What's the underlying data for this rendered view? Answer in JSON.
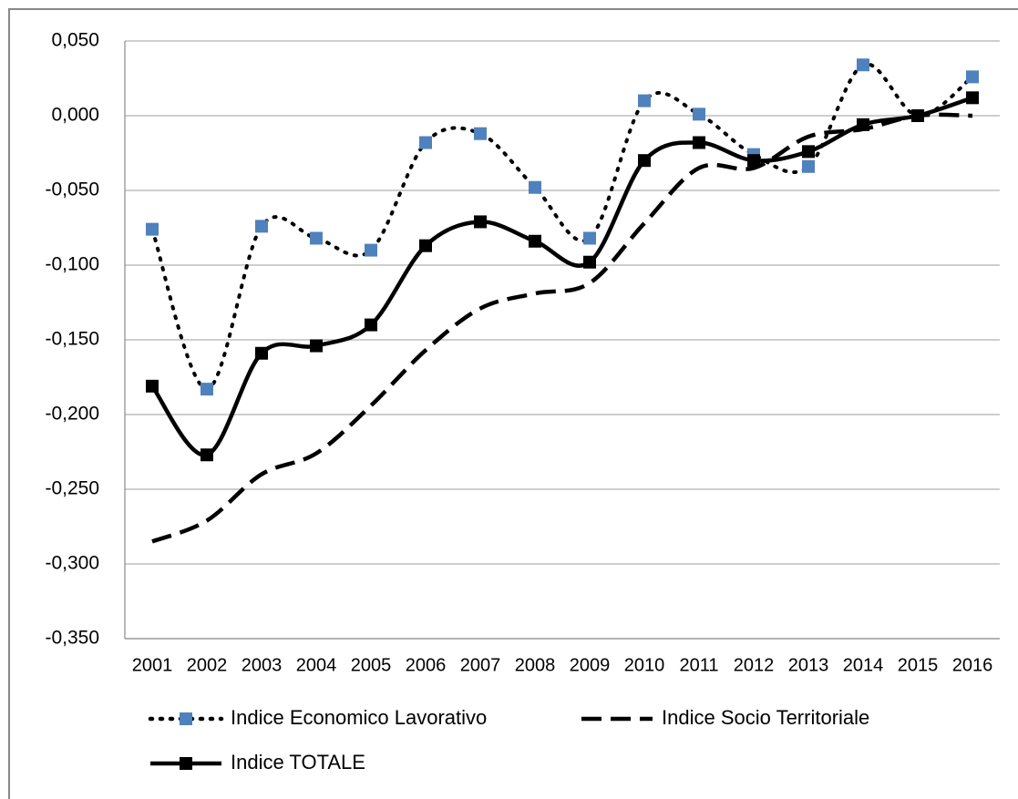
{
  "chart_data": {
    "type": "line",
    "categories": [
      "2001",
      "2002",
      "2003",
      "2004",
      "2005",
      "2006",
      "2007",
      "2008",
      "2009",
      "2010",
      "2011",
      "2012",
      "2013",
      "2014",
      "2015",
      "2016"
    ],
    "series": [
      {
        "name": "Indice Economico Lavorativo",
        "color": "#000000",
        "dash": "dotted",
        "marker": "square",
        "marker_color": "#4f81bd",
        "values": [
          -0.076,
          -0.183,
          -0.074,
          -0.082,
          -0.09,
          -0.018,
          -0.012,
          -0.048,
          -0.082,
          0.01,
          0.001,
          -0.026,
          -0.034,
          0.034,
          0.0,
          0.026
        ]
      },
      {
        "name": "Indice Socio Territoriale",
        "color": "#000000",
        "dash": "dashed",
        "marker": "none",
        "values": [
          -0.285,
          -0.271,
          -0.24,
          -0.226,
          -0.194,
          -0.157,
          -0.129,
          -0.119,
          -0.112,
          -0.072,
          -0.035,
          -0.035,
          -0.014,
          -0.009,
          0.0,
          0.0
        ]
      },
      {
        "name": "Indice TOTALE",
        "color": "#000000",
        "dash": "solid",
        "marker": "square",
        "marker_color": "#000000",
        "values": [
          -0.181,
          -0.227,
          -0.159,
          -0.154,
          -0.14,
          -0.087,
          -0.071,
          -0.084,
          -0.098,
          -0.03,
          -0.018,
          -0.03,
          -0.024,
          -0.006,
          0.0,
          0.012
        ]
      }
    ],
    "ylim": [
      -0.35,
      0.05
    ],
    "yticks": [
      {
        "value": -0.35,
        "label": "-0,350"
      },
      {
        "value": -0.3,
        "label": "-0,300"
      },
      {
        "value": -0.25,
        "label": "-0,250"
      },
      {
        "value": -0.2,
        "label": "-0,200"
      },
      {
        "value": -0.15,
        "label": "-0,150"
      },
      {
        "value": -0.1,
        "label": "-0,100"
      },
      {
        "value": -0.05,
        "label": "-0,050"
      },
      {
        "value": 0,
        "label": "0,000"
      },
      {
        "value": 0.05,
        "label": "0,050"
      }
    ],
    "grid": true,
    "smooth": true,
    "legend": "bottom"
  }
}
